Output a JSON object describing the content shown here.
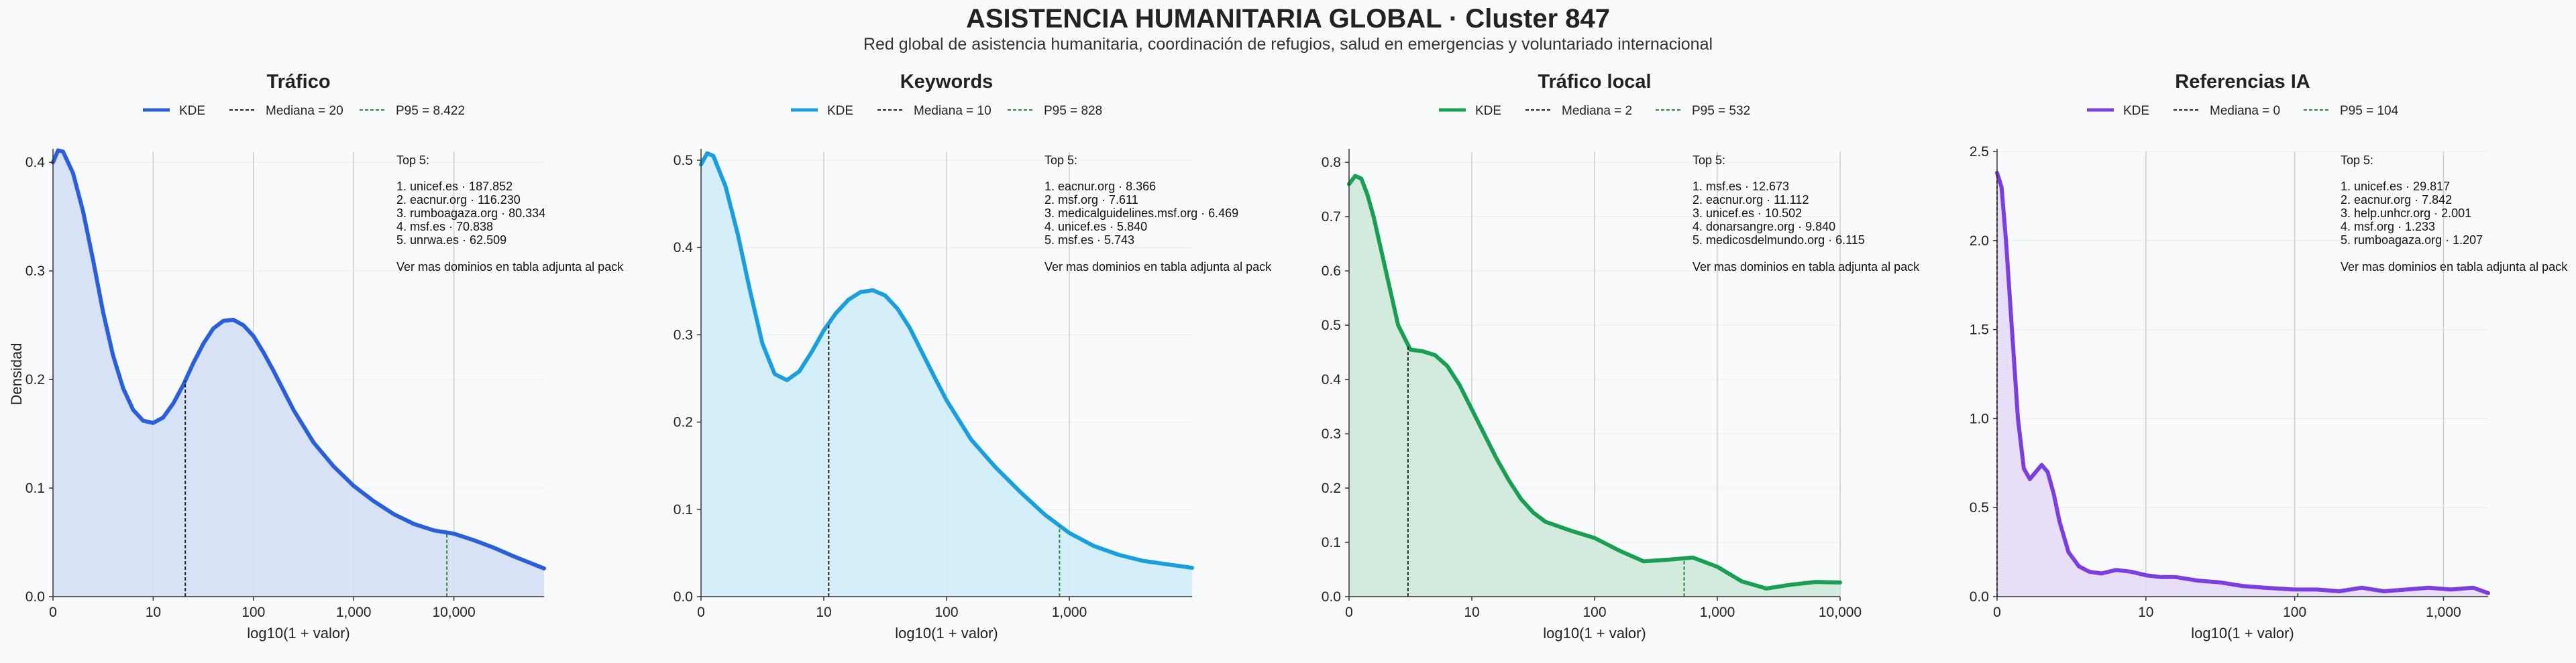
{
  "header": {
    "title": "ASISTENCIA HUMANITARIA GLOBAL · Cluster 847",
    "subtitle": "Red global de asistencia humanitaria, coordinación de refugios, salud en emergencias y voluntariado internacional"
  },
  "chart_data": [
    {
      "type": "area",
      "title": "Tráfico",
      "xlabel": "log10(1 + valor)",
      "ylabel": "Densidad",
      "color": "#2b5fd9",
      "fill": "#d6e0f7",
      "xlim": [
        0,
        4.9
      ],
      "ylim": [
        0,
        0.41
      ],
      "yticks": [
        0.0,
        0.1,
        0.2,
        0.3,
        0.4
      ],
      "ytick_labels": [
        "0.0",
        "0.1",
        "0.2",
        "0.3",
        "0.4"
      ],
      "xticks": [
        0,
        1,
        2,
        3,
        4
      ],
      "xtick_labels": [
        "0",
        "10",
        "100",
        "1,000",
        "10,000"
      ],
      "grid": true,
      "legend": [
        "KDE",
        "Mediana = 20",
        "P95 = 8.422"
      ],
      "median_x": 1.32,
      "p95_x": 3.93,
      "x": [
        0,
        0.05,
        0.1,
        0.2,
        0.3,
        0.4,
        0.5,
        0.6,
        0.7,
        0.8,
        0.9,
        1.0,
        1.1,
        1.2,
        1.3,
        1.4,
        1.5,
        1.6,
        1.7,
        1.8,
        1.9,
        2.0,
        2.1,
        2.2,
        2.3,
        2.4,
        2.6,
        2.8,
        3.0,
        3.2,
        3.4,
        3.6,
        3.8,
        4.0,
        4.2,
        4.4,
        4.6,
        4.9
      ],
      "y": [
        0.4,
        0.411,
        0.41,
        0.39,
        0.355,
        0.31,
        0.262,
        0.222,
        0.192,
        0.172,
        0.162,
        0.16,
        0.165,
        0.178,
        0.195,
        0.215,
        0.233,
        0.247,
        0.254,
        0.255,
        0.25,
        0.24,
        0.225,
        0.208,
        0.19,
        0.172,
        0.142,
        0.12,
        0.102,
        0.088,
        0.076,
        0.067,
        0.061,
        0.058,
        0.052,
        0.045,
        0.037,
        0.026
      ],
      "annotation": {
        "heading": "Top 5:",
        "items": [
          "1. unicef.es · 187.852",
          "2. eacnur.org · 116.230",
          "3. rumboagaza.org · 80.334",
          "4. msf.es · 70.838",
          "5. unrwa.es · 62.509"
        ],
        "footer": "Ver mas dominios en tabla adjunta al pack"
      }
    },
    {
      "type": "area",
      "title": "Keywords",
      "xlabel": "log10(1 + valor)",
      "ylabel": "",
      "color": "#1b9ede",
      "fill": "#d2edfa",
      "xlim": [
        0,
        4.0
      ],
      "ylim": [
        0,
        0.51
      ],
      "yticks": [
        0.0,
        0.1,
        0.2,
        0.3,
        0.4,
        0.5
      ],
      "ytick_labels": [
        "0.0",
        "0.1",
        "0.2",
        "0.3",
        "0.4",
        "0.5"
      ],
      "xticks": [
        0,
        1,
        2,
        3
      ],
      "xtick_labels": [
        "0",
        "10",
        "100",
        "1,000"
      ],
      "grid": true,
      "legend": [
        "KDE",
        "Mediana = 10",
        "P95 = 828"
      ],
      "median_x": 1.04,
      "p95_x": 2.92,
      "x": [
        0,
        0.05,
        0.1,
        0.2,
        0.3,
        0.4,
        0.5,
        0.6,
        0.7,
        0.8,
        0.9,
        1.0,
        1.1,
        1.2,
        1.3,
        1.4,
        1.5,
        1.6,
        1.7,
        1.8,
        1.9,
        2.0,
        2.2,
        2.4,
        2.6,
        2.8,
        3.0,
        3.2,
        3.4,
        3.6,
        3.8,
        4.0
      ],
      "y": [
        0.495,
        0.508,
        0.505,
        0.47,
        0.415,
        0.35,
        0.29,
        0.255,
        0.248,
        0.258,
        0.28,
        0.305,
        0.325,
        0.34,
        0.349,
        0.351,
        0.345,
        0.33,
        0.308,
        0.28,
        0.252,
        0.225,
        0.18,
        0.148,
        0.12,
        0.094,
        0.073,
        0.058,
        0.048,
        0.041,
        0.037,
        0.033
      ],
      "annotation": {
        "heading": "Top 5:",
        "items": [
          "1. eacnur.org · 8.366",
          "2. msf.org · 7.611",
          "3. medicalguidelines.msf.org · 6.469",
          "4. unicef.es · 5.840",
          "5. msf.es · 5.743"
        ],
        "footer": "Ver mas dominios en tabla adjunta al pack"
      }
    },
    {
      "type": "area",
      "title": "Tráfico local",
      "xlabel": "log10(1 + valor)",
      "ylabel": "",
      "color": "#1a9e52",
      "fill": "#d0eadb",
      "xlim": [
        0,
        4.0
      ],
      "ylim": [
        0,
        0.82
      ],
      "yticks": [
        0.0,
        0.1,
        0.2,
        0.3,
        0.4,
        0.5,
        0.6,
        0.7,
        0.8
      ],
      "ytick_labels": [
        "0.0",
        "0.1",
        "0.2",
        "0.3",
        "0.4",
        "0.5",
        "0.6",
        "0.7",
        "0.8"
      ],
      "xticks": [
        0,
        1,
        2,
        3,
        4
      ],
      "xtick_labels": [
        "0",
        "10",
        "100",
        "1,000",
        "10,000"
      ],
      "grid": true,
      "legend": [
        "KDE",
        "Mediana = 2",
        "P95 = 532"
      ],
      "median_x": 0.48,
      "p95_x": 2.73,
      "x": [
        0,
        0.05,
        0.1,
        0.15,
        0.2,
        0.3,
        0.4,
        0.5,
        0.6,
        0.7,
        0.8,
        0.9,
        1.0,
        1.1,
        1.2,
        1.3,
        1.4,
        1.5,
        1.6,
        1.8,
        2.0,
        2.2,
        2.4,
        2.6,
        2.8,
        3.0,
        3.2,
        3.4,
        3.6,
        3.8,
        4.0
      ],
      "y": [
        0.76,
        0.775,
        0.77,
        0.74,
        0.7,
        0.6,
        0.5,
        0.455,
        0.452,
        0.445,
        0.425,
        0.39,
        0.345,
        0.3,
        0.255,
        0.215,
        0.18,
        0.155,
        0.138,
        0.122,
        0.108,
        0.085,
        0.065,
        0.068,
        0.072,
        0.055,
        0.028,
        0.015,
        0.022,
        0.027,
        0.026
      ],
      "annotation": {
        "heading": "Top 5:",
        "items": [
          "1. msf.es · 12.673",
          "2. eacnur.org · 11.112",
          "3. unicef.es · 10.502",
          "4. donarsangre.org · 9.840",
          "5. medicosdelmundo.org · 6.115"
        ],
        "footer": "Ver mas dominios en tabla adjunta al pack"
      }
    },
    {
      "type": "area",
      "title": "Referencias IA",
      "xlabel": "log10(1 + valor)",
      "ylabel": "",
      "color": "#7b3fe0",
      "fill": "#e7dcf8",
      "xlim": [
        0,
        3.3
      ],
      "ylim": [
        0,
        2.5
      ],
      "yticks": [
        0.0,
        0.5,
        1.0,
        1.5,
        2.0,
        2.5
      ],
      "ytick_labels": [
        "0.0",
        "0.5",
        "1.0",
        "1.5",
        "2.0",
        "2.5"
      ],
      "xticks": [
        0,
        1,
        2,
        3
      ],
      "xtick_labels": [
        "0",
        "10",
        "100",
        "1,000"
      ],
      "grid": true,
      "legend": [
        "KDE",
        "Mediana = 0",
        "P95 = 104"
      ],
      "median_x": 0.0,
      "p95_x": 2.02,
      "x": [
        0,
        0.03,
        0.06,
        0.1,
        0.14,
        0.18,
        0.22,
        0.26,
        0.3,
        0.34,
        0.38,
        0.42,
        0.48,
        0.55,
        0.62,
        0.7,
        0.8,
        0.9,
        1.0,
        1.1,
        1.2,
        1.35,
        1.5,
        1.65,
        1.8,
        2.0,
        2.15,
        2.3,
        2.45,
        2.6,
        2.75,
        2.9,
        3.05,
        3.2,
        3.3
      ],
      "y": [
        2.38,
        2.3,
        2.0,
        1.5,
        1.0,
        0.72,
        0.66,
        0.7,
        0.74,
        0.7,
        0.58,
        0.42,
        0.25,
        0.17,
        0.14,
        0.13,
        0.15,
        0.14,
        0.12,
        0.11,
        0.11,
        0.09,
        0.08,
        0.06,
        0.05,
        0.04,
        0.04,
        0.03,
        0.05,
        0.03,
        0.04,
        0.05,
        0.04,
        0.05,
        0.02
      ],
      "annotation": {
        "heading": "Top 5:",
        "items": [
          "1. unicef.es · 29.817",
          "2. eacnur.org · 7.842",
          "3. help.unhcr.org · 2.001",
          "4. msf.org · 1.233",
          "5. rumboagaza.org · 1.207"
        ],
        "footer": "Ver mas dominios en tabla adjunta al pack"
      }
    }
  ]
}
